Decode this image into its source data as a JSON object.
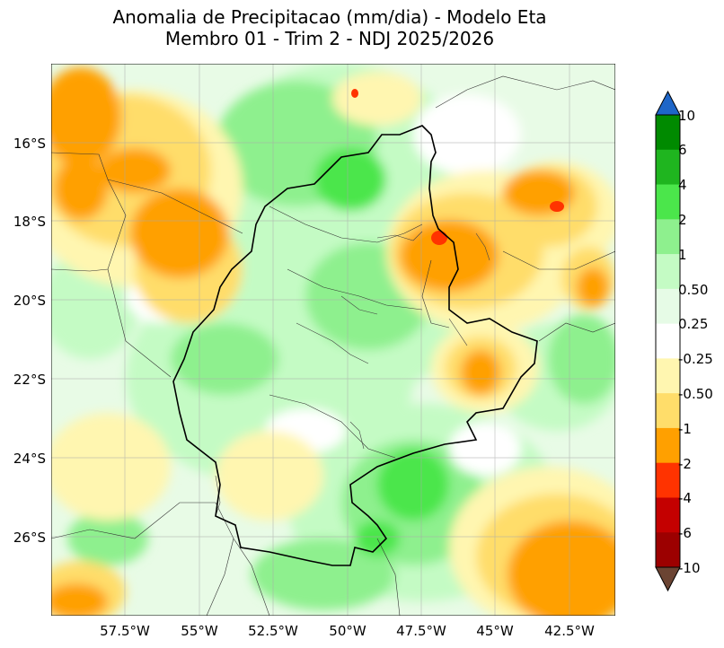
{
  "title": {
    "line1": "Anomalia de Precipitacao (mm/dia) - Modelo Eta",
    "line2": "Membro 01 - Trim 2 - NDJ 2025/2026"
  },
  "map": {
    "lat_labels": [
      "16°S",
      "18°S",
      "20°S",
      "22°S",
      "24°S",
      "26°S"
    ],
    "lon_labels": [
      "57.5°W",
      "55°W",
      "52.5°W",
      "50°W",
      "47.5°W",
      "45°W",
      "42.5°W"
    ],
    "lat_range": [
      -28.0,
      -14.0
    ],
    "lon_range": [
      -60.0,
      -40.5
    ]
  },
  "colorbar": {
    "levels": [
      "10",
      "6",
      "4",
      "2",
      "1",
      "0.50",
      "0.25",
      "-0.25",
      "-0.50",
      "-1",
      "-2",
      "-4",
      "-6",
      "-10"
    ],
    "colors": [
      "#008a00",
      "#1fb51f",
      "#4be64b",
      "#8ef08e",
      "#c4fbc4",
      "#e6fbe6",
      "#ffffff",
      "#fff6b0",
      "#ffdd6a",
      "#ffa000",
      "#ff3300",
      "#c40000",
      "#9c0000"
    ],
    "extend_top_color": "#1e66c8",
    "extend_bottom_color": "#6b4433"
  }
}
